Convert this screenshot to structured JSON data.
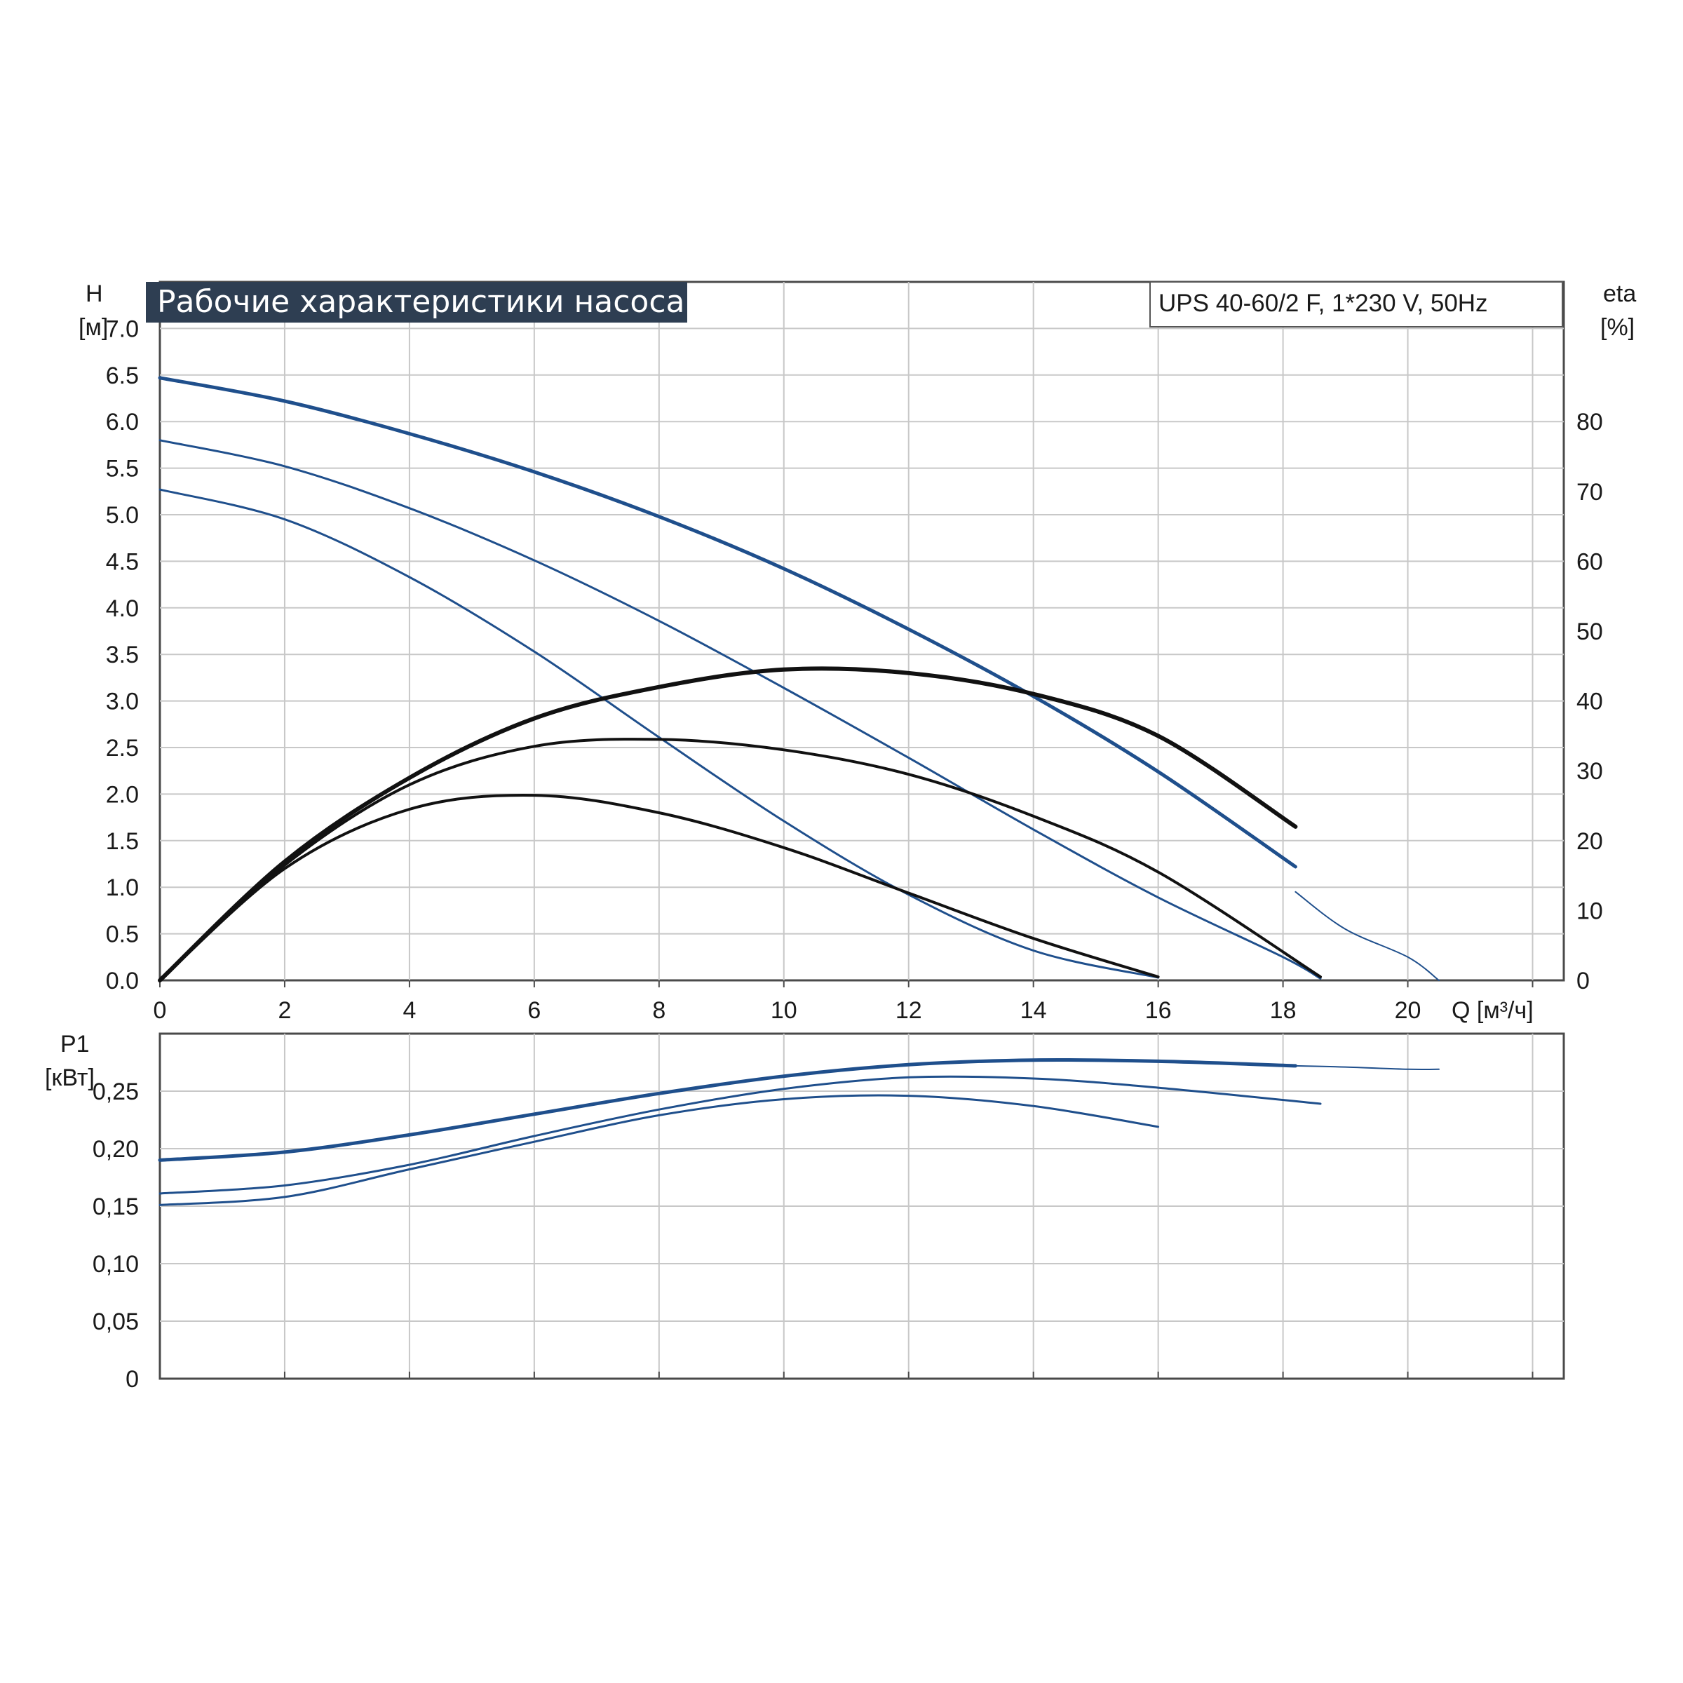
{
  "title": "Рабочие характеристики насоса",
  "model": "UPS 40-60/2 F, 1*230 V, 50Hz",
  "colors": {
    "title_bg": "#2e3e52",
    "grid": "#c8c8c8",
    "axis": "#4a4a4a",
    "blue": "#1f4f8c",
    "black": "#111111"
  },
  "chart_data": [
    {
      "type": "line",
      "name": "head-efficiency",
      "ylabel": "H",
      "ylabel_unit": "[м]",
      "y2label": "eta",
      "y2label_unit": "[%]",
      "xlabel": "Q [м³/ч]",
      "xlim": [
        0,
        22.5
      ],
      "ylim": [
        0,
        7.5
      ],
      "y2lim": [
        0,
        100
      ],
      "x_ticks": [
        "0",
        "2",
        "4",
        "6",
        "8",
        "10",
        "12",
        "14",
        "16",
        "18",
        "20"
      ],
      "y_ticks": [
        "0.0",
        "0.5",
        "1.0",
        "1.5",
        "2.0",
        "2.5",
        "3.0",
        "3.5",
        "4.0",
        "4.5",
        "5.0",
        "5.5",
        "6.0",
        "6.5",
        "7.0"
      ],
      "y2_ticks": [
        "0",
        "10",
        "20",
        "30",
        "40",
        "50",
        "60",
        "70",
        "80"
      ],
      "grid": true,
      "series": [
        {
          "role": "head",
          "speed": 3,
          "color": "blue",
          "width": 5,
          "x": [
            0,
            2,
            4,
            6,
            8,
            10,
            12,
            14,
            16,
            18.2
          ],
          "y": [
            6.47,
            6.22,
            5.87,
            5.46,
            4.98,
            4.42,
            3.77,
            3.05,
            2.24,
            1.22
          ]
        },
        {
          "role": "head-ext",
          "speed": 3,
          "color": "blue",
          "width": 2,
          "x": [
            18.2,
            19,
            20,
            20.5
          ],
          "y": [
            0.95,
            0.55,
            0.25,
            0.0
          ]
        },
        {
          "role": "head",
          "speed": 2,
          "color": "blue",
          "width": 3,
          "x": [
            0,
            2,
            4,
            6,
            8,
            10,
            12,
            14,
            16,
            18,
            18.6
          ],
          "y": [
            5.8,
            5.52,
            5.07,
            4.51,
            3.86,
            3.14,
            2.39,
            1.62,
            0.89,
            0.25,
            0.02
          ]
        },
        {
          "role": "head",
          "speed": 1,
          "color": "blue",
          "width": 3,
          "x": [
            0,
            2,
            4,
            6,
            8,
            10,
            12,
            14,
            16
          ],
          "y": [
            5.27,
            4.95,
            4.33,
            3.53,
            2.61,
            1.71,
            0.92,
            0.32,
            0.03
          ]
        },
        {
          "role": "eta",
          "speed": 3,
          "color": "black",
          "width": 6,
          "x": [
            0,
            2,
            4,
            6,
            8,
            10,
            12,
            14,
            16,
            18.2
          ],
          "y": [
            0,
            17,
            29,
            37.5,
            42,
            44.5,
            44,
            41,
            35,
            22
          ]
        },
        {
          "role": "eta",
          "speed": 2,
          "color": "black",
          "width": 4,
          "x": [
            0,
            2,
            4,
            6,
            8,
            10,
            12,
            14,
            16,
            18.6
          ],
          "y": [
            0,
            16.5,
            28,
            33.5,
            34.5,
            33,
            29.5,
            23.5,
            15.5,
            0.5
          ]
        },
        {
          "role": "eta",
          "speed": 1,
          "color": "black",
          "width": 4,
          "x": [
            0,
            2,
            4,
            6,
            8,
            10,
            12,
            14,
            16
          ],
          "y": [
            0,
            16,
            24.5,
            26.5,
            24,
            19,
            12.5,
            6,
            0.5
          ]
        }
      ]
    },
    {
      "type": "line",
      "name": "power",
      "ylabel": "P1",
      "ylabel_unit": "[кВт]",
      "xlim": [
        0,
        22.5
      ],
      "ylim": [
        0,
        0.3
      ],
      "y_ticks": [
        "0",
        "0,05",
        "0,10",
        "0,15",
        "0,20",
        "0,25"
      ],
      "grid": true,
      "series": [
        {
          "speed": 3,
          "color": "blue",
          "width": 5,
          "x": [
            0,
            2,
            4,
            6,
            8,
            10,
            12,
            14,
            16,
            18.2
          ],
          "y": [
            0.19,
            0.197,
            0.212,
            0.23,
            0.248,
            0.263,
            0.273,
            0.277,
            0.276,
            0.272
          ]
        },
        {
          "speed": 3,
          "color": "blue",
          "width": 2,
          "x": [
            18.2,
            19,
            20,
            20.5
          ],
          "y": [
            0.272,
            0.271,
            0.269,
            0.269
          ]
        },
        {
          "speed": 2,
          "color": "blue",
          "width": 3,
          "x": [
            0,
            2,
            4,
            6,
            8,
            10,
            12,
            14,
            16,
            18.6
          ],
          "y": [
            0.161,
            0.168,
            0.186,
            0.211,
            0.234,
            0.252,
            0.262,
            0.261,
            0.253,
            0.239
          ]
        },
        {
          "speed": 1,
          "color": "blue",
          "width": 3,
          "x": [
            0,
            2,
            4,
            6,
            8,
            10,
            12,
            14,
            16
          ],
          "y": [
            0.151,
            0.158,
            0.182,
            0.206,
            0.229,
            0.243,
            0.246,
            0.237,
            0.219
          ]
        }
      ]
    }
  ]
}
